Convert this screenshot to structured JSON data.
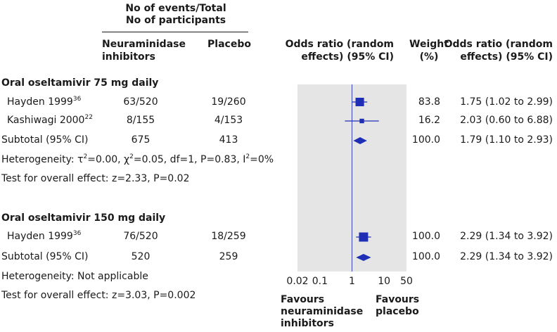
{
  "header": {
    "events_line1": "No of events/Total",
    "events_line2": "No of participants",
    "col_treatment_1": "Neuraminidase",
    "col_treatment_2": "inhibitors",
    "col_placebo": "Placebo",
    "col_or_1": "Odds ratio (random",
    "col_or_2": "effects) (95% CI)",
    "col_weight_1": "Weight",
    "col_weight_2": "(%)",
    "col_ortext_1": "Odds ratio (random",
    "col_ortext_2": "effects) (95% CI)"
  },
  "groups": [
    {
      "title": "Oral oseltamivir 75 mg daily",
      "studies": [
        {
          "name": "Hayden 1999",
          "ref": "36",
          "treat": "63/520",
          "placebo": "19/260",
          "weight": "83.8",
          "ci_text": "1.75 (1.02 to 2.99)"
        },
        {
          "name": "Kashiwagi 2000",
          "ref": "22",
          "treat": "8/155",
          "placebo": "4/153",
          "weight": "16.2",
          "ci_text": "2.03 (0.60 to 6.88)"
        }
      ],
      "subtotal": {
        "label": "Subtotal (95% CI)",
        "treat": "675",
        "placebo": "413",
        "weight": "100.0",
        "ci_text": "1.79 (1.10 to 2.93)"
      },
      "heterogeneity": {
        "prefix": "Heterogeneity: ",
        "tau": "τ",
        "tau_val": "=0.00, ",
        "chi": "χ",
        "chi_val": "=0.05, df=1, P=0.83, ",
        "i": "I",
        "i_val": "=0%",
        "sq": "2"
      },
      "overall": "Test for overall effect: z=2.33, P=0.02"
    },
    {
      "title": "Oral oseltamivir 150 mg daily",
      "studies": [
        {
          "name": "Hayden 1999",
          "ref": "36",
          "treat": "76/520",
          "placebo": "18/259",
          "weight": "100.0",
          "ci_text": "2.29 (1.34 to 3.92)"
        }
      ],
      "subtotal": {
        "label": "Subtotal (95% CI)",
        "treat": "520",
        "placebo": "259",
        "weight": "100.0",
        "ci_text": "2.29 (1.34 to 3.92)"
      },
      "heterogeneity_text": "Heterogeneity: Not applicable",
      "overall": "Test for overall effect: z=3.03, P=0.002"
    }
  ],
  "footer": {
    "favours_left_1": "Favours",
    "favours_left_2": "neuraminidase",
    "favours_left_3": "inhibitors",
    "favours_right_1": "Favours",
    "favours_right_2": "placebo"
  },
  "chart_data": {
    "type": "forest",
    "title": "Odds ratio (random effects) (95% CI)",
    "xscale": "log",
    "xlim": [
      0.02,
      50
    ],
    "xticks": [
      0.02,
      0.1,
      1,
      10,
      50
    ],
    "xticklabels": [
      "0.02",
      "0.1",
      "1",
      "10",
      "50"
    ],
    "reference": 1,
    "points": [
      {
        "label": "Hayden 1999",
        "group": "Oral oseltamivir 75 mg daily",
        "kind": "study",
        "or": 1.75,
        "lo": 1.02,
        "hi": 2.99,
        "weight": 83.8
      },
      {
        "label": "Kashiwagi 2000",
        "group": "Oral oseltamivir 75 mg daily",
        "kind": "study",
        "or": 2.03,
        "lo": 0.6,
        "hi": 6.88,
        "weight": 16.2
      },
      {
        "label": "Subtotal (95% CI)",
        "group": "Oral oseltamivir 75 mg daily",
        "kind": "subtotal",
        "or": 1.79,
        "lo": 1.1,
        "hi": 2.93,
        "weight": 100.0
      },
      {
        "label": "Hayden 1999",
        "group": "Oral oseltamivir 150 mg daily",
        "kind": "study",
        "or": 2.29,
        "lo": 1.34,
        "hi": 3.92,
        "weight": 100.0
      },
      {
        "label": "Subtotal (95% CI)",
        "group": "Oral oseltamivir 150 mg daily",
        "kind": "subtotal",
        "or": 2.29,
        "lo": 1.34,
        "hi": 3.92,
        "weight": 100.0
      }
    ],
    "colors": {
      "panel": "#e5e5e5",
      "marker": "#1f2fb5",
      "refline": "#3a45b8"
    }
  }
}
